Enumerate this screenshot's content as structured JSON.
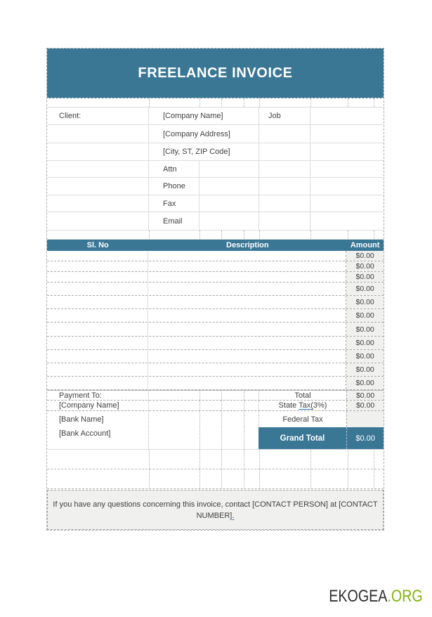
{
  "title": "FREELANCE INVOICE",
  "colors": {
    "accent": "#3A7795",
    "light_fill": "#F0F0EE",
    "link_blue": "#2E74B5",
    "logo_green": "#84B40B"
  },
  "client": {
    "label": "Client:",
    "company_name": "[Company Name]",
    "company_address": "[Company Address]",
    "city_line": "[City, ST, ZIP Code]",
    "job_label": "Job",
    "attn_label": "Attn",
    "phone_label": "Phone",
    "fax_label": "Fax",
    "email_label": "Email"
  },
  "items_table": {
    "headers": [
      "Sl. No",
      "Description",
      "Amount"
    ],
    "rows": [
      {
        "sl_no": "",
        "description": "",
        "amount": "$0.00"
      },
      {
        "sl_no": "",
        "description": "",
        "amount": "$0.00"
      },
      {
        "sl_no": "",
        "description": "",
        "amount": "$0.00"
      },
      {
        "sl_no": "",
        "description": "",
        "amount": "$0.00"
      },
      {
        "sl_no": "",
        "description": "",
        "amount": "$0.00"
      },
      {
        "sl_no": "",
        "description": "",
        "amount": "$0.00"
      },
      {
        "sl_no": "",
        "description": "",
        "amount": "$0.00"
      },
      {
        "sl_no": "",
        "description": "",
        "amount": "$0.00"
      },
      {
        "sl_no": "",
        "description": "",
        "amount": "$0.00"
      },
      {
        "sl_no": "",
        "description": "",
        "amount": "$0.00"
      },
      {
        "sl_no": "",
        "description": "",
        "amount": "$0.00"
      }
    ]
  },
  "payment": {
    "label": "Payment To:",
    "company_name": "[Company Name]",
    "bank_name": "[Bank Name]",
    "bank_account": "[Bank Account]"
  },
  "totals": {
    "total_label": "Total",
    "total_value": "$0.00",
    "state_tax_pre": "State ",
    "state_tax_link": "Tax(",
    "state_tax_post": "3%)",
    "state_tax_value": "$0.00",
    "federal_tax_label": "Federal Tax",
    "federal_tax_value": "",
    "grand_total_label": "Grand Total",
    "grand_total_value": "$0.00"
  },
  "footer": {
    "line1": "If you have any questions concerning this invoice, contact [CONTACT PERSON] at [CONTACT",
    "line2_pre": "NUMBER",
    "line2_link": "]."
  },
  "logo": {
    "name": "EKOGEA",
    "tld": ".ORG"
  }
}
